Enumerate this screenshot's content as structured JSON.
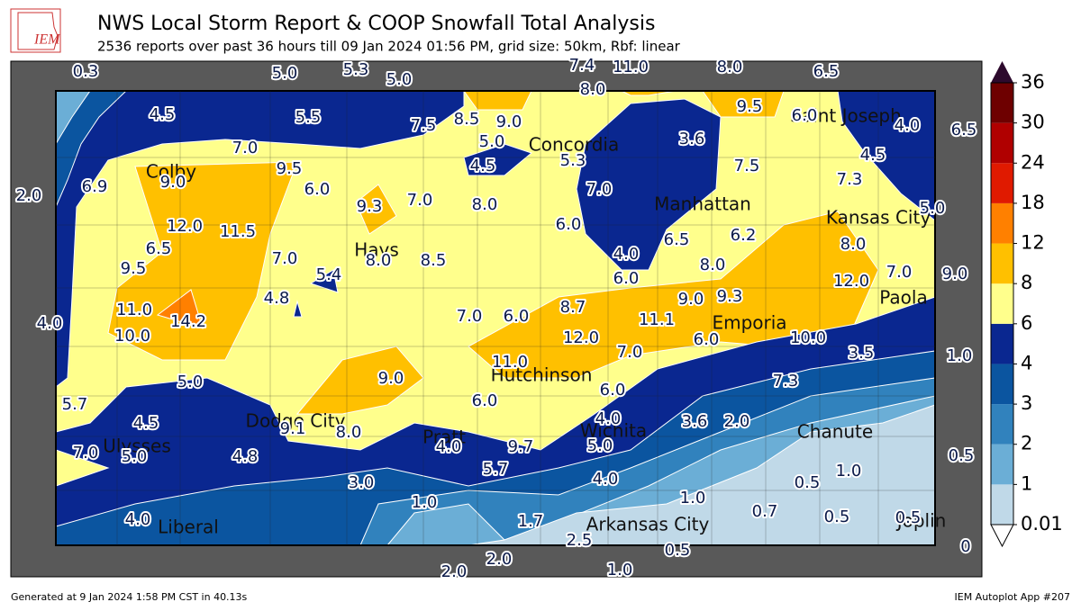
{
  "header": {
    "title": "NWS Local Storm Report & COOP Snowfall Total Analysis",
    "subtitle": "2536 reports over past 36 hours till 09 Jan 2024 01:56 PM, grid size: 50km, Rbf: linear",
    "logo": "IEM"
  },
  "legend": {
    "levels": [
      0.01,
      1,
      2,
      3,
      4,
      6,
      8,
      12,
      18,
      24,
      30,
      36
    ],
    "colors": [
      "#c0d9e8",
      "#6baed6",
      "#3182bd",
      "#0b55a0",
      "#0a2790",
      "#ffff8c",
      "#ffc000",
      "#ff8000",
      "#e01a00",
      "#b00000",
      "#6e0000"
    ],
    "over_color": "#2d0a2d",
    "under_color": "#ffffff"
  },
  "cities": [
    "Colby",
    "Hays",
    "Concordia",
    "Manhattan",
    "Saint Joseph",
    "Kansas City",
    "Paola",
    "Emporia",
    "Hutchinson",
    "Dodge City",
    "Pratt",
    "Wichita",
    "Chanute",
    "Ulysses",
    "Liberal",
    "Arkansas City",
    "Joplin"
  ],
  "values": [
    "0.3",
    "5.0",
    "5.3",
    "5.0",
    "7.4",
    "11.0",
    "8.0",
    "6.5",
    "8.0",
    "2.0",
    "6.5",
    "5.0",
    "9.0",
    "4.0",
    "1.0",
    "0.5",
    "0",
    "2.0",
    "2.0",
    "1.0",
    "0.5",
    "5.7",
    "4.5",
    "5.5",
    "7.5",
    "8.5",
    "9.0",
    "9.5",
    "6.0",
    "4.0",
    "3.6",
    "5.0",
    "5.3",
    "4.5",
    "7.5",
    "4.5",
    "7.0",
    "9.0",
    "9.5",
    "6.0",
    "6.9",
    "7.3",
    "9.3",
    "7.0",
    "8.0",
    "7.0",
    "12.0",
    "11.5",
    "6.0",
    "6.5",
    "6.2",
    "8.0",
    "6.5",
    "7.0",
    "8.0",
    "8.5",
    "4.0",
    "8.0",
    "9.5",
    "5.4",
    "6.0",
    "12.0",
    "7.0",
    "4.8",
    "9.0",
    "9.3",
    "8.7",
    "11.0",
    "14.2",
    "7.0",
    "6.0",
    "11.1",
    "10.0",
    "12.0",
    "6.0",
    "10.0",
    "7.0",
    "3.5",
    "9.0",
    "11.0",
    "5.0",
    "6.0",
    "7.3",
    "6.0",
    "4.5",
    "9.1",
    "8.0",
    "4.0",
    "3.6",
    "2.0",
    "4.0",
    "9.7",
    "5.0",
    "7.0",
    "5.0",
    "4.8",
    "5.7",
    "4.0",
    "1.0",
    "0.5",
    "3.0",
    "1.0",
    "1.0",
    "0.7",
    "0.5",
    "0.5",
    "4.0",
    "1.7",
    "2.5"
  ],
  "footer": {
    "left": "Generated at 9 Jan 2024 1:58 PM CST in 40.13s",
    "right": "IEM Autoplot App #207"
  }
}
